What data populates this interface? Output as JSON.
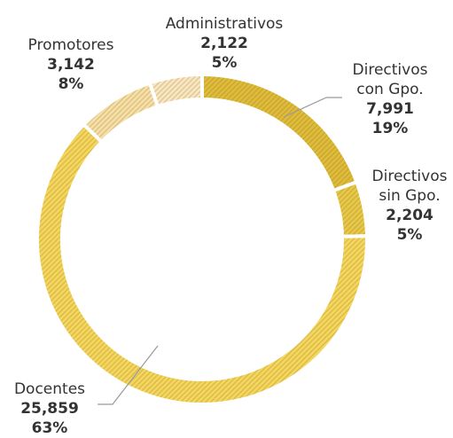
{
  "chart_data": {
    "type": "pie",
    "donut": true,
    "title": "",
    "slices": [
      {
        "label": "Directivos con Gpo.",
        "label_lines": [
          "Directivos",
          "con Gpo."
        ],
        "value": 7991,
        "value_label": "7,991",
        "percent_label": "19%",
        "color": "#e0bc3c"
      },
      {
        "label": "Directivos sin Gpo.",
        "label_lines": [
          "Directivos",
          "sin Gpo."
        ],
        "value": 2204,
        "value_label": "2,204",
        "percent_label": "5%",
        "color": "#e8c84a"
      },
      {
        "label": "Docentes",
        "label_lines": [
          "Docentes"
        ],
        "value": 25859,
        "value_label": "25,859",
        "percent_label": "63%",
        "color": "#f5d65e"
      },
      {
        "label": "Promotores",
        "label_lines": [
          "Promotores"
        ],
        "value": 3142,
        "value_label": "3,142",
        "percent_label": "8%",
        "color": "#f7dfa8"
      },
      {
        "label": "Administrativos",
        "label_lines": [
          "Administrativos"
        ],
        "value": 2122,
        "value_label": "2,122",
        "percent_label": "5%",
        "color": "#fae6c2"
      }
    ],
    "legend": "none"
  }
}
